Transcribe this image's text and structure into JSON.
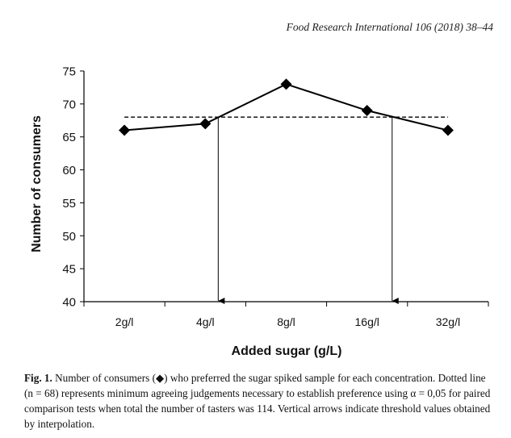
{
  "header": {
    "journal": "Food Research International 106 (2018) 38–44"
  },
  "chart_data": {
    "type": "line",
    "categories": [
      "2g/l",
      "4g/l",
      "8g/l",
      "16g/l",
      "32g/l"
    ],
    "series": [
      {
        "values": [
          66,
          67,
          73,
          69,
          66
        ],
        "marker": "diamond",
        "color": "#000000"
      }
    ],
    "threshold": {
      "value": 68,
      "style": "dashed"
    },
    "arrows": [
      {
        "x_position": 1.16,
        "direction": "down"
      },
      {
        "x_position": 3.31,
        "direction": "down"
      }
    ],
    "xlabel": "Added sugar (g/L)",
    "ylabel": "Number of consumers",
    "ylim": [
      40,
      75
    ],
    "yticks": [
      40,
      45,
      50,
      55,
      60,
      65,
      70,
      75
    ],
    "grid": false,
    "legend": "none"
  },
  "caption": {
    "label": "Fig. 1.",
    "text": "Number of consumers (◆) who preferred the sugar spiked sample for each concentration. Dotted line (n = 68) represents minimum agreeing judgements necessary to establish preference using α = 0,05 for paired comparison tests when total the number of tasters was 114. Vertical arrows indicate threshold values obtained by interpolation."
  }
}
